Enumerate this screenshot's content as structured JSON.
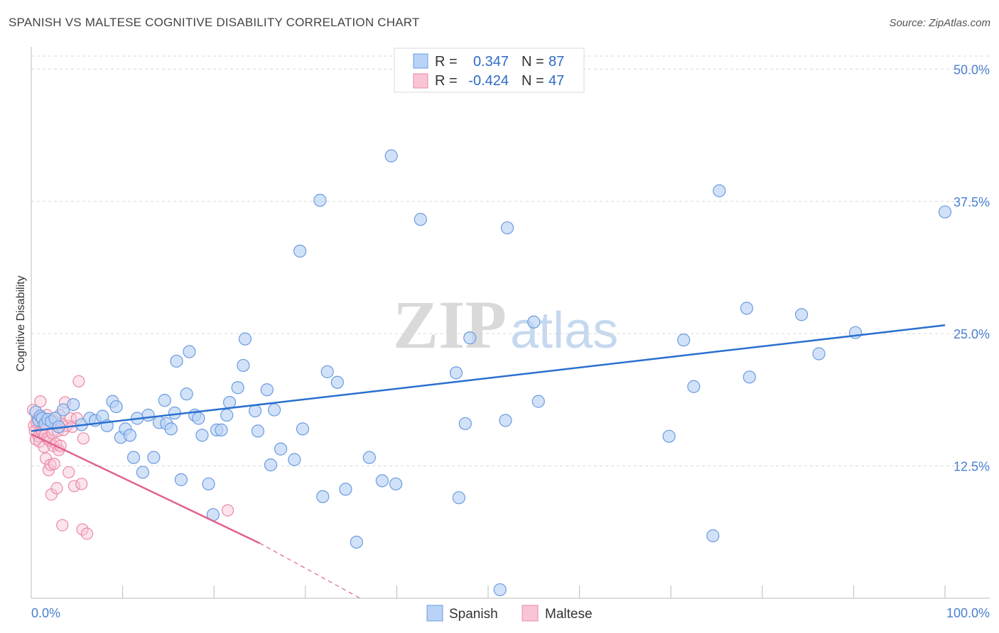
{
  "title": "SPANISH VS MALTESE COGNITIVE DISABILITY CORRELATION CHART",
  "source": "Source: ZipAtlas.com",
  "watermark": {
    "zip": "ZIP",
    "atlas": "atlas"
  },
  "colors": {
    "spanish_fill": "#b8d3f5",
    "spanish_stroke": "#6b9be0",
    "spanish_line": "#2a6fcf",
    "maltese_fill": "#f9c4d4",
    "maltese_stroke": "#e98aa8",
    "maltese_line": "#e0628f",
    "tick_label": "#4a7fcf",
    "grid": "#d8d8d8"
  },
  "legend": {
    "rows": [
      {
        "r_label": "R =",
        "r_value": "0.347",
        "n_label": "N =",
        "n_value": "87"
      },
      {
        "r_label": "R =",
        "r_value": "-0.424",
        "n_label": "N =",
        "n_value": "47"
      }
    ]
  },
  "chart_data": {
    "type": "scatter",
    "title": "SPANISH VS MALTESE COGNITIVE DISABILITY CORRELATION CHART",
    "xlabel": "",
    "ylabel": "Cognitive Disability",
    "xlim": [
      0,
      100
    ],
    "ylim": [
      0,
      51.5
    ],
    "x_tick_labels": [
      "0.0%",
      "100.0%"
    ],
    "y_ticks": [
      12.5,
      25.0,
      37.5,
      50.0
    ],
    "y_tick_labels": [
      "12.5%",
      "25.0%",
      "37.5%",
      "50.0%"
    ],
    "grid": true,
    "legend_position": "top-center",
    "series": [
      {
        "name": "Spanish",
        "trend": {
          "x": [
            0,
            100
          ],
          "y": [
            15.8,
            25.8
          ]
        },
        "points": [
          [
            0.5,
            17.6
          ],
          [
            0.8,
            16.8
          ],
          [
            1.0,
            17.2
          ],
          [
            1.2,
            17.0
          ],
          [
            1.5,
            16.5
          ],
          [
            1.8,
            16.9
          ],
          [
            2.2,
            16.7
          ],
          [
            2.6,
            17.0
          ],
          [
            3.0,
            16.2
          ],
          [
            3.5,
            17.8
          ],
          [
            4.6,
            18.3
          ],
          [
            5.5,
            16.4
          ],
          [
            6.4,
            17.0
          ],
          [
            7.0,
            16.8
          ],
          [
            7.8,
            17.2
          ],
          [
            8.3,
            16.3
          ],
          [
            8.9,
            18.6
          ],
          [
            9.3,
            18.1
          ],
          [
            9.8,
            15.2
          ],
          [
            10.3,
            16.0
          ],
          [
            10.8,
            15.4
          ],
          [
            11.2,
            13.3
          ],
          [
            11.6,
            17.0
          ],
          [
            12.2,
            11.9
          ],
          [
            12.8,
            17.3
          ],
          [
            13.4,
            13.3
          ],
          [
            14.0,
            16.6
          ],
          [
            14.6,
            18.7
          ],
          [
            14.8,
            16.5
          ],
          [
            15.3,
            16.0
          ],
          [
            15.7,
            17.5
          ],
          [
            15.9,
            22.4
          ],
          [
            16.4,
            11.2
          ],
          [
            17.0,
            19.3
          ],
          [
            17.3,
            23.3
          ],
          [
            17.9,
            17.3
          ],
          [
            18.3,
            17.0
          ],
          [
            18.7,
            15.4
          ],
          [
            19.4,
            10.8
          ],
          [
            19.9,
            7.9
          ],
          [
            20.3,
            15.9
          ],
          [
            20.8,
            15.9
          ],
          [
            21.4,
            17.3
          ],
          [
            21.7,
            18.5
          ],
          [
            22.6,
            19.9
          ],
          [
            23.2,
            22.0
          ],
          [
            23.4,
            24.5
          ],
          [
            24.5,
            17.7
          ],
          [
            24.8,
            15.8
          ],
          [
            25.8,
            19.7
          ],
          [
            26.2,
            12.6
          ],
          [
            26.6,
            17.8
          ],
          [
            27.3,
            14.1
          ],
          [
            28.8,
            13.1
          ],
          [
            29.4,
            32.8
          ],
          [
            29.7,
            16.0
          ],
          [
            31.6,
            37.6
          ],
          [
            31.9,
            9.6
          ],
          [
            32.4,
            21.4
          ],
          [
            33.5,
            20.4
          ],
          [
            34.4,
            10.3
          ],
          [
            35.6,
            5.3
          ],
          [
            37.0,
            13.3
          ],
          [
            38.4,
            11.1
          ],
          [
            39.4,
            41.8
          ],
          [
            39.9,
            10.8
          ],
          [
            42.6,
            35.8
          ],
          [
            46.5,
            21.3
          ],
          [
            46.8,
            9.5
          ],
          [
            47.5,
            16.5
          ],
          [
            48.0,
            24.6
          ],
          [
            51.3,
            0.8
          ],
          [
            51.9,
            16.8
          ],
          [
            52.1,
            35.0
          ],
          [
            55.0,
            26.1
          ],
          [
            55.5,
            18.6
          ],
          [
            69.8,
            15.3
          ],
          [
            71.4,
            24.4
          ],
          [
            72.5,
            20.0
          ],
          [
            74.6,
            5.9
          ],
          [
            75.3,
            38.5
          ],
          [
            78.3,
            27.4
          ],
          [
            78.6,
            20.9
          ],
          [
            84.3,
            26.8
          ],
          [
            86.2,
            23.1
          ],
          [
            90.2,
            25.1
          ],
          [
            100.0,
            36.5
          ]
        ]
      },
      {
        "name": "Maltese",
        "trend": {
          "x": [
            0,
            25
          ],
          "y": [
            15.5,
            5.2
          ]
        },
        "trend_dashed": {
          "x": [
            25,
            36
          ],
          "y": [
            5.2,
            0.0
          ]
        },
        "points": [
          [
            0.2,
            17.8
          ],
          [
            0.3,
            16.3
          ],
          [
            0.4,
            15.8
          ],
          [
            0.5,
            15.0
          ],
          [
            0.6,
            16.6
          ],
          [
            0.7,
            17.0
          ],
          [
            0.8,
            15.3
          ],
          [
            0.9,
            14.8
          ],
          [
            1.0,
            18.6
          ],
          [
            1.1,
            16.0
          ],
          [
            1.2,
            15.7
          ],
          [
            1.3,
            16.4
          ],
          [
            1.4,
            14.3
          ],
          [
            1.5,
            15.4
          ],
          [
            1.6,
            13.2
          ],
          [
            1.7,
            17.3
          ],
          [
            1.8,
            15.1
          ],
          [
            1.9,
            12.1
          ],
          [
            2.0,
            14.9
          ],
          [
            2.1,
            12.6
          ],
          [
            2.2,
            9.8
          ],
          [
            2.3,
            15.6
          ],
          [
            2.4,
            14.4
          ],
          [
            2.5,
            12.7
          ],
          [
            2.6,
            16.7
          ],
          [
            2.7,
            14.6
          ],
          [
            2.8,
            10.4
          ],
          [
            2.9,
            15.8
          ],
          [
            3.0,
            14.0
          ],
          [
            3.1,
            17.3
          ],
          [
            3.2,
            14.4
          ],
          [
            3.3,
            16.5
          ],
          [
            3.4,
            6.9
          ],
          [
            3.5,
            15.9
          ],
          [
            3.7,
            18.5
          ],
          [
            3.9,
            16.3
          ],
          [
            4.1,
            11.9
          ],
          [
            4.3,
            17.0
          ],
          [
            4.5,
            16.2
          ],
          [
            4.7,
            10.6
          ],
          [
            5.0,
            17.0
          ],
          [
            5.2,
            20.5
          ],
          [
            5.5,
            10.8
          ],
          [
            5.6,
            6.5
          ],
          [
            5.7,
            15.1
          ],
          [
            6.1,
            6.1
          ],
          [
            21.5,
            8.3
          ]
        ]
      }
    ]
  },
  "bottom_legend": {
    "items": [
      "Spanish",
      "Maltese"
    ]
  }
}
